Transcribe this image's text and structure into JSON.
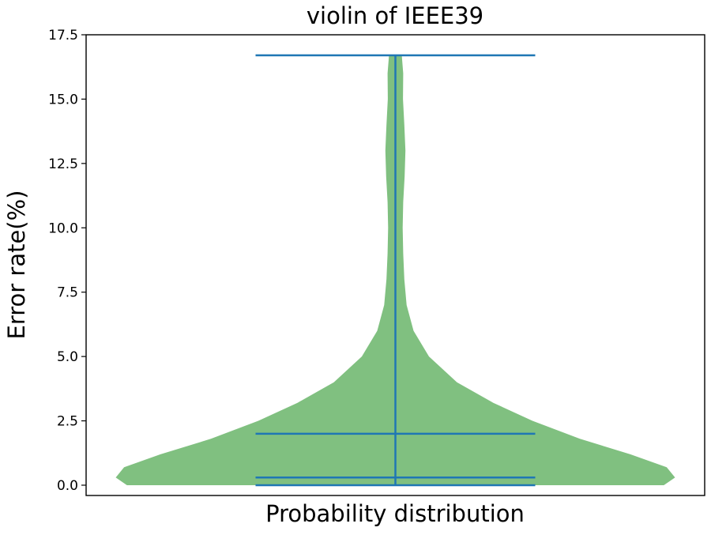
{
  "chart_data": {
    "type": "violin",
    "title": "violin of IEEE39",
    "xlabel": "Probability distribution",
    "ylabel": "Error rate(%)",
    "ylim": [
      -0.4,
      17.5
    ],
    "yticks": [
      0.0,
      2.5,
      5.0,
      7.5,
      10.0,
      12.5,
      15.0,
      17.5
    ],
    "ytick_labels": [
      "0.0",
      "2.5",
      "5.0",
      "7.5",
      "10.0",
      "12.5",
      "15.0",
      "17.5"
    ],
    "grid": false,
    "series": [
      {
        "min": 0.0,
        "median": 0.3,
        "mean": 2.0,
        "max": 16.7,
        "density": [
          [
            0.0,
            0.96
          ],
          [
            0.3,
            1.0
          ],
          [
            0.7,
            0.97
          ],
          [
            1.2,
            0.84
          ],
          [
            1.8,
            0.66
          ],
          [
            2.5,
            0.49
          ],
          [
            3.2,
            0.35
          ],
          [
            4.0,
            0.22
          ],
          [
            5.0,
            0.12
          ],
          [
            6.0,
            0.065
          ],
          [
            7.0,
            0.04
          ],
          [
            8.0,
            0.032
          ],
          [
            9.0,
            0.028
          ],
          [
            10.0,
            0.026
          ],
          [
            11.0,
            0.028
          ],
          [
            12.0,
            0.033
          ],
          [
            13.0,
            0.036
          ],
          [
            14.0,
            0.032
          ],
          [
            15.0,
            0.027
          ],
          [
            16.0,
            0.028
          ],
          [
            16.7,
            0.023
          ]
        ]
      }
    ],
    "colors": {
      "body": "#80c080",
      "lines": "#1f77b4",
      "axes": "#000000"
    }
  }
}
